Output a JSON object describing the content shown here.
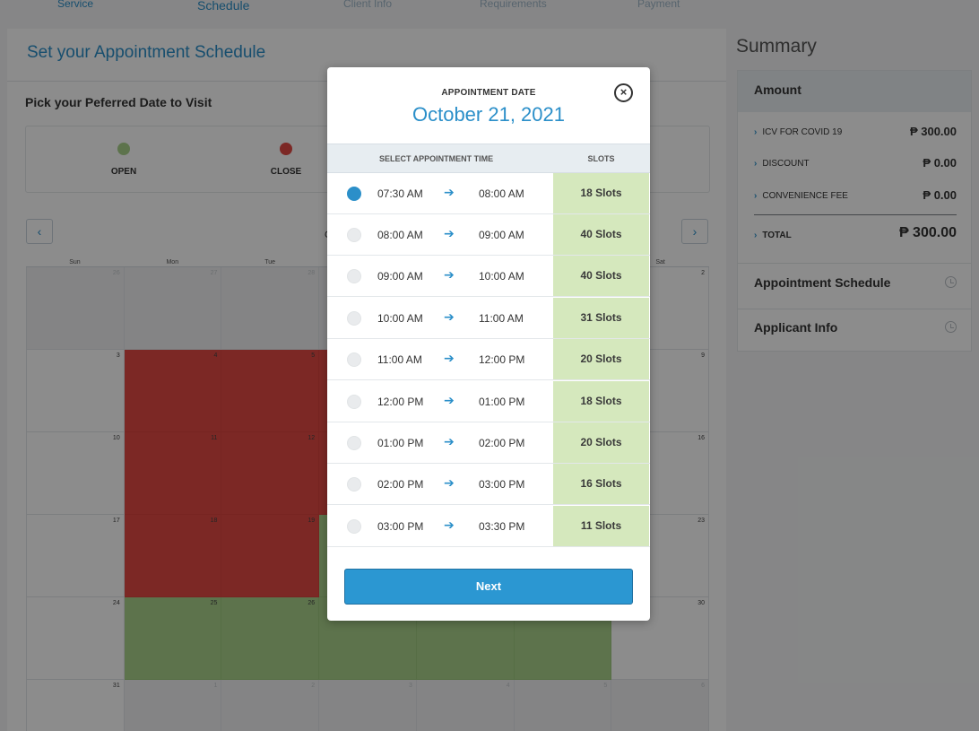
{
  "steps": [
    "Service",
    "Schedule",
    "Client Info",
    "Requirements",
    "Payment"
  ],
  "panel": {
    "title": "Set your Appointment Schedule",
    "pick_title": "Pick your Peferred Date to Visit",
    "legend": [
      {
        "label": "OPEN",
        "color": "#a9d28a"
      },
      {
        "label": "CLOSE",
        "color": "#e24a44"
      }
    ],
    "month_label": "O",
    "weekdays": [
      "Sun",
      "Mon",
      "Tue",
      "",
      "",
      "",
      "Sat"
    ]
  },
  "calendar": {
    "weeks": [
      [
        {
          "d": "26",
          "s": "other"
        },
        {
          "d": "27",
          "s": "other"
        },
        {
          "d": "28",
          "s": "other"
        },
        {
          "d": "",
          "s": "other"
        },
        {
          "d": "",
          "s": "other"
        },
        {
          "d": "",
          "s": "other"
        },
        {
          "d": "2",
          "s": ""
        }
      ],
      [
        {
          "d": "3",
          "s": ""
        },
        {
          "d": "4",
          "s": "closed"
        },
        {
          "d": "5",
          "s": "closed"
        },
        {
          "d": "",
          "s": "closed"
        },
        {
          "d": "",
          "s": "closed"
        },
        {
          "d": "",
          "s": "closed"
        },
        {
          "d": "9",
          "s": ""
        }
      ],
      [
        {
          "d": "10",
          "s": ""
        },
        {
          "d": "11",
          "s": "closed"
        },
        {
          "d": "12",
          "s": "closed"
        },
        {
          "d": "",
          "s": "closed"
        },
        {
          "d": "",
          "s": "closed"
        },
        {
          "d": "",
          "s": "closed"
        },
        {
          "d": "16",
          "s": ""
        }
      ],
      [
        {
          "d": "17",
          "s": ""
        },
        {
          "d": "18",
          "s": "closed"
        },
        {
          "d": "19",
          "s": "closed"
        },
        {
          "d": "",
          "s": "open"
        },
        {
          "d": "",
          "s": "open"
        },
        {
          "d": "",
          "s": "open"
        },
        {
          "d": "23",
          "s": ""
        }
      ],
      [
        {
          "d": "24",
          "s": ""
        },
        {
          "d": "25",
          "s": "open"
        },
        {
          "d": "26",
          "s": "open"
        },
        {
          "d": "",
          "s": "open"
        },
        {
          "d": "",
          "s": "open"
        },
        {
          "d": "",
          "s": "open"
        },
        {
          "d": "30",
          "s": ""
        }
      ],
      [
        {
          "d": "31",
          "s": ""
        },
        {
          "d": "1",
          "s": "other"
        },
        {
          "d": "2",
          "s": "other"
        },
        {
          "d": "3",
          "s": "other"
        },
        {
          "d": "4",
          "s": "other"
        },
        {
          "d": "5",
          "s": "other"
        },
        {
          "d": "6",
          "s": "other"
        }
      ]
    ]
  },
  "summary": {
    "title": "Summary",
    "amount_header": "Amount",
    "items": [
      {
        "label": "ICV FOR COVID 19",
        "amount": "₱ 300.00"
      },
      {
        "label": "DISCOUNT",
        "amount": "₱ 0.00"
      },
      {
        "label": "CONVENIENCE FEE",
        "amount": "₱ 0.00"
      }
    ],
    "total_label": "TOTAL",
    "total_amount": "₱ 300.00",
    "appointment_schedule": "Appointment Schedule",
    "applicant_info": "Applicant Info"
  },
  "modal": {
    "label": "APPOINTMENT DATE",
    "date": "October 21, 2021",
    "col_time": "SELECT APPOINTMENT TIME",
    "col_slots": "SLOTS",
    "arrow": "➔",
    "slots": [
      {
        "from": "07:30 AM",
        "to": "08:00 AM",
        "slots": "18 Slots",
        "selected": true
      },
      {
        "from": "08:00 AM",
        "to": "09:00 AM",
        "slots": "40 Slots",
        "selected": false
      },
      {
        "from": "09:00 AM",
        "to": "10:00 AM",
        "slots": "40 Slots",
        "selected": false
      },
      {
        "from": "10:00 AM",
        "to": "11:00 AM",
        "slots": "31 Slots",
        "selected": false
      },
      {
        "from": "11:00 AM",
        "to": "12:00 PM",
        "slots": "20 Slots",
        "selected": false
      },
      {
        "from": "12:00 PM",
        "to": "01:00 PM",
        "slots": "18 Slots",
        "selected": false
      },
      {
        "from": "01:00 PM",
        "to": "02:00 PM",
        "slots": "20 Slots",
        "selected": false
      },
      {
        "from": "02:00 PM",
        "to": "03:00 PM",
        "slots": "16 Slots",
        "selected": false
      },
      {
        "from": "03:00 PM",
        "to": "03:30 PM",
        "slots": "11 Slots",
        "selected": false
      }
    ],
    "next_label": "Next"
  },
  "colors": {
    "accent": "#2b8fc9",
    "slot_bg": "#d5e8bd",
    "open": "#a9d28a",
    "closed": "#e24a44"
  }
}
